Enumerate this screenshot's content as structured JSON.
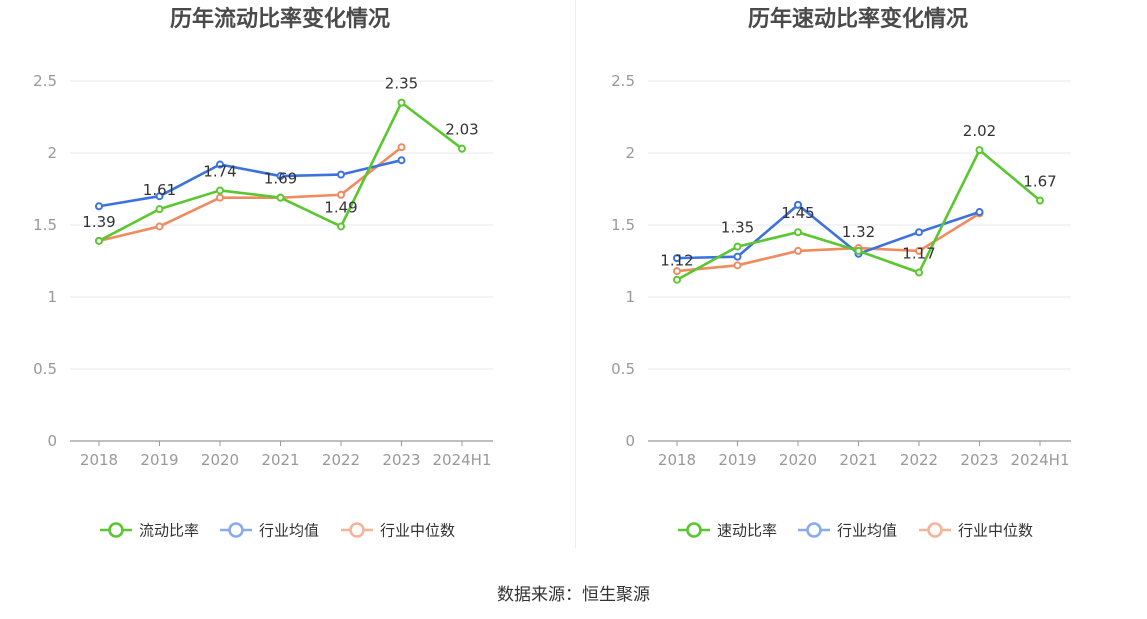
{
  "colors": {
    "series1": "#5ac730",
    "series2": "#3b72e0",
    "series3": "#f08b60",
    "legend2": "#8aaaf0",
    "legend3": "#f5b49a",
    "grid": "#e6e9f2",
    "axis": "#999999",
    "tick": "#999999",
    "label": "#333333",
    "title": "#4a4a4a"
  },
  "chart_data": [
    {
      "type": "line",
      "title": "历年流动比率变化情况",
      "categories": [
        "2018",
        "2019",
        "2020",
        "2021",
        "2022",
        "2023",
        "2024H1"
      ],
      "ylim": [
        0,
        2.5
      ],
      "yticks": [
        "0",
        "0.5",
        "1",
        "1.5",
        "2",
        "2.5"
      ],
      "grid": true,
      "legend_position": "bottom",
      "series": [
        {
          "name": "流动比率",
          "values": [
            1.39,
            1.61,
            1.74,
            1.69,
            1.49,
            2.35,
            2.03
          ],
          "labels": [
            "1.39",
            "1.61",
            "1.74",
            "1.69",
            "1.49",
            "2.35",
            "2.03"
          ]
        },
        {
          "name": "行业均值",
          "values": [
            1.63,
            1.7,
            1.92,
            1.84,
            1.85,
            1.95,
            null
          ]
        },
        {
          "name": "行业中位数",
          "values": [
            1.39,
            1.49,
            1.69,
            1.69,
            1.71,
            2.04,
            null
          ]
        }
      ]
    },
    {
      "type": "line",
      "title": "历年速动比率变化情况",
      "categories": [
        "2018",
        "2019",
        "2020",
        "2021",
        "2022",
        "2023",
        "2024H1"
      ],
      "ylim": [
        0,
        2.5
      ],
      "yticks": [
        "0",
        "0.5",
        "1",
        "1.5",
        "2",
        "2.5"
      ],
      "grid": true,
      "legend_position": "bottom",
      "series": [
        {
          "name": "速动比率",
          "values": [
            1.12,
            1.35,
            1.45,
            1.32,
            1.17,
            2.02,
            1.67
          ],
          "labels": [
            "1.12",
            "1.35",
            "1.45",
            "1.32",
            "1.17",
            "2.02",
            "1.67"
          ]
        },
        {
          "name": "行业均值",
          "values": [
            1.27,
            1.28,
            1.64,
            1.3,
            1.45,
            1.59,
            null
          ]
        },
        {
          "name": "行业中位数",
          "values": [
            1.18,
            1.22,
            1.32,
            1.34,
            1.32,
            1.58,
            null
          ]
        }
      ]
    }
  ],
  "footer": {
    "source": "数据来源：恒生聚源"
  }
}
